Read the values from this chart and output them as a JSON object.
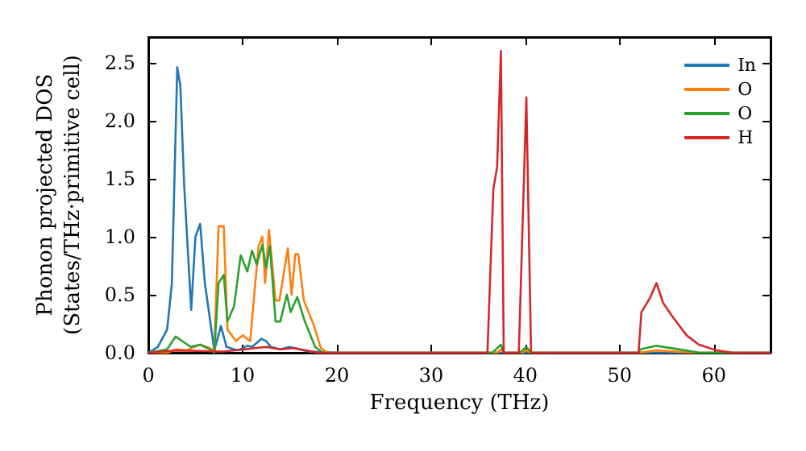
{
  "chart_data": {
    "type": "line",
    "xlabel": "Frequency (THz)",
    "ylabel": "Phonon projected DOS\n(States/THz·primitive cell)",
    "xlim": [
      0,
      66
    ],
    "ylim": [
      0,
      2.72
    ],
    "xticks": [
      0,
      10,
      20,
      30,
      40,
      50,
      60
    ],
    "yticks": [
      {
        "value": 0,
        "label": "0.0"
      },
      {
        "value": 0.5,
        "label": "0.5"
      },
      {
        "value": 1,
        "label": "1.0"
      },
      {
        "value": 1.5,
        "label": "1.5"
      },
      {
        "value": 2,
        "label": "2.0"
      },
      {
        "value": 2.5,
        "label": "2.5"
      }
    ],
    "grid": false,
    "legend": "top right",
    "marker": "none",
    "line_style": "solid",
    "series": [
      {
        "name": "In",
        "color": "#1f77b4",
        "x": [
          0,
          1,
          2,
          2.5,
          3.07,
          3.4,
          3.8,
          4.55,
          5,
          5.5,
          6,
          7,
          7.7,
          8.3,
          9.5,
          10.5,
          11,
          12,
          12.5,
          13,
          14,
          15,
          16,
          17,
          20,
          66
        ],
        "values": [
          0,
          0.05,
          0.2,
          0.6,
          2.46,
          2.3,
          1.45,
          0.37,
          1.0,
          1.11,
          0.6,
          0.02,
          0.23,
          0.05,
          0.02,
          0.06,
          0.05,
          0.12,
          0.1,
          0.05,
          0.03,
          0.05,
          0.03,
          0.01,
          0,
          0
        ]
      },
      {
        "name": "O",
        "color": "#ff7f0e",
        "x": [
          0,
          2,
          3,
          4,
          5.5,
          6.5,
          7,
          7.45,
          8,
          8.4,
          9.3,
          10,
          10.8,
          11.7,
          12.1,
          12.4,
          12.8,
          13.5,
          13.9,
          14.8,
          15.2,
          15.6,
          15.9,
          16.5,
          17.5,
          18.3,
          19,
          37,
          37.4,
          37.7,
          39.6,
          40.1,
          40.6,
          52,
          53.9,
          58,
          66
        ],
        "values": [
          0,
          0,
          0.03,
          0.02,
          0.07,
          0.04,
          0.02,
          1.09,
          1.09,
          0.2,
          0.1,
          0.15,
          0.1,
          0.92,
          1.0,
          0.6,
          1.06,
          0.45,
          0.45,
          0.9,
          0.5,
          0.85,
          0.85,
          0.45,
          0.25,
          0.04,
          0,
          0,
          0.03,
          0,
          0,
          0.02,
          0,
          0,
          0.02,
          0,
          0
        ]
      },
      {
        "name": "O",
        "color": "#2ca02c",
        "x": [
          0,
          2,
          2.9,
          4.5,
          5.5,
          6.5,
          7,
          7.45,
          8,
          8.4,
          9.1,
          9.8,
          10.5,
          11,
          11.5,
          12.1,
          12.5,
          12.9,
          13.5,
          14,
          14.7,
          15.1,
          15.8,
          16.6,
          17.7,
          18.5,
          36.5,
          37.4,
          37.7,
          39.4,
          40.1,
          40.6,
          52,
          52.2,
          53.9,
          57,
          58.4,
          66
        ],
        "values": [
          0,
          0.03,
          0.14,
          0.05,
          0.07,
          0.03,
          0,
          0.6,
          0.67,
          0.27,
          0.4,
          0.84,
          0.7,
          0.88,
          0.76,
          0.93,
          0.73,
          0.92,
          0.27,
          0.27,
          0.5,
          0.35,
          0.48,
          0.27,
          0.05,
          0,
          0,
          0.07,
          0,
          0,
          0.05,
          0,
          0,
          0.03,
          0.06,
          0.02,
          0,
          0
        ]
      },
      {
        "name": "H",
        "color": "#d62728",
        "x": [
          0,
          3,
          8,
          12.5,
          14,
          15.5,
          18,
          35.97,
          36.6,
          37,
          37.4,
          37.7,
          39.3,
          40.1,
          40.6,
          52,
          52.3,
          53.2,
          53.9,
          54.6,
          55.7,
          57.1,
          58.4,
          60.3,
          62,
          66
        ],
        "values": [
          0,
          0.02,
          0.01,
          0.05,
          0.03,
          0.04,
          0,
          0,
          1.41,
          1.6,
          2.6,
          0,
          0,
          2.2,
          0,
          0,
          0.35,
          0.47,
          0.6,
          0.43,
          0.3,
          0.15,
          0.07,
          0.02,
          0,
          0
        ]
      }
    ]
  }
}
